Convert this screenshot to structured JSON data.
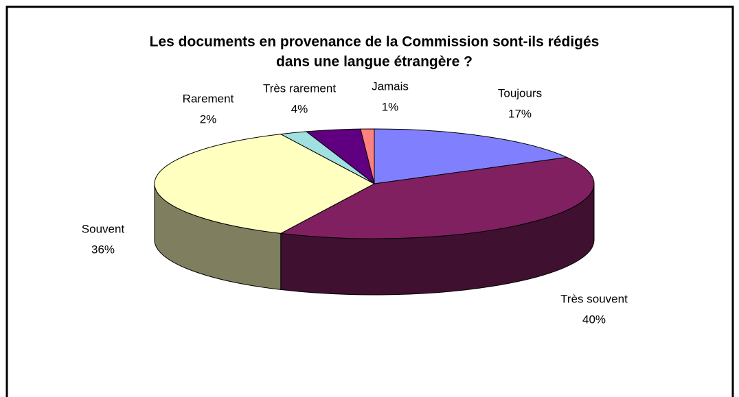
{
  "chart_data": {
    "type": "pie",
    "title": [
      "Les documents en provenance de la Commission sont-ils rédigés",
      "dans une langue étrangère ?"
    ],
    "categories": [
      "Toujours",
      "Très souvent",
      "Souvent",
      "Rarement",
      "Très rarement",
      "Jamais"
    ],
    "values": [
      17,
      40,
      36,
      2,
      4,
      1
    ],
    "value_labels": [
      "17%",
      "40%",
      "36%",
      "2%",
      "4%",
      "1%"
    ],
    "colors": [
      "#8080ff",
      "#802060",
      "#ffffc0",
      "#a0e0e0",
      "#600080",
      "#ff8080"
    ]
  }
}
